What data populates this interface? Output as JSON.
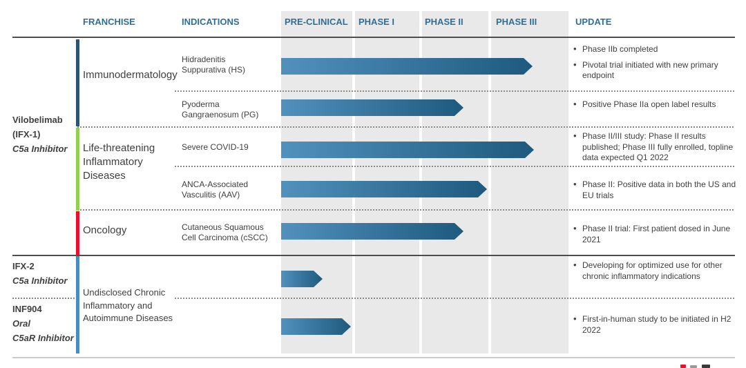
{
  "header": {
    "columns": [
      "FRANCHISE",
      "INDICATIONS",
      "PRE-CLINICAL",
      "PHASE I",
      "PHASE II",
      "PHASE III",
      "UPDATE"
    ]
  },
  "programs": [
    {
      "lines": [
        "Vilobelimab",
        "(IFX-1)",
        "C5a Inhibitor"
      ]
    },
    {
      "lines": [
        "IFX-2",
        "C5a Inhibitor"
      ]
    },
    {
      "lines": [
        "INF904",
        "Oral",
        "C5aR Inhibitor"
      ]
    }
  ],
  "franchises": [
    {
      "label": "Immunodermatology",
      "color": "#2b5574"
    },
    {
      "label": "Life-threatening Inflammatory Diseases",
      "color": "#92d050"
    },
    {
      "label": "Oncology",
      "color": "#e8112d"
    },
    {
      "label": "Undisclosed Chronic Inflammatory and Autoimmune Diseases",
      "color": "#4a8bc2"
    }
  ],
  "rows": [
    {
      "indication": "Hidradenitis\nSuppurativa (HS)",
      "phase_reach": 3.54,
      "updates": [
        "Phase IIb completed",
        "Pivotal trial initiated with new primary endpoint"
      ]
    },
    {
      "indication": "Pyoderma\nGangraenosum (PG)",
      "phase_reach": 2.63,
      "updates": [
        "Positive Phase IIa open label results"
      ]
    },
    {
      "indication": "Severe COVID-19",
      "phase_reach": 3.55,
      "updates": [
        "Phase II/III study: Phase II results published; Phase III fully enrolled, topline data expected Q1 2022"
      ]
    },
    {
      "indication": "ANCA-Associated\nVasculitis (AAV)",
      "phase_reach": 2.98,
      "updates": [
        "Phase II: Positive data in both the US and EU trials"
      ]
    },
    {
      "indication": "Cutaneous Squamous\nCell Carcinoma (cSCC)",
      "phase_reach": 2.63,
      "updates": [
        "Phase II trial: First patient dosed in June 2021"
      ]
    },
    {
      "indication": "",
      "phase_reach": 0.58,
      "updates": [
        "Developing for optimized use for other chronic inflammatory indications"
      ]
    },
    {
      "indication": "",
      "phase_reach": 0.98,
      "updates": [
        "First-in-human study to be initiated in H2 2022"
      ]
    }
  ],
  "colors": {
    "header_text": "#2e6f99",
    "arrow_start": "#5191bd",
    "arrow_end": "#1e5a7e",
    "column_bg": "#e9e9e9",
    "logo_fragment_red": "#e8112d",
    "logo_fragment_gray": "#9a9a9a",
    "logo_fragment_dark": "#3a3a3a"
  }
}
